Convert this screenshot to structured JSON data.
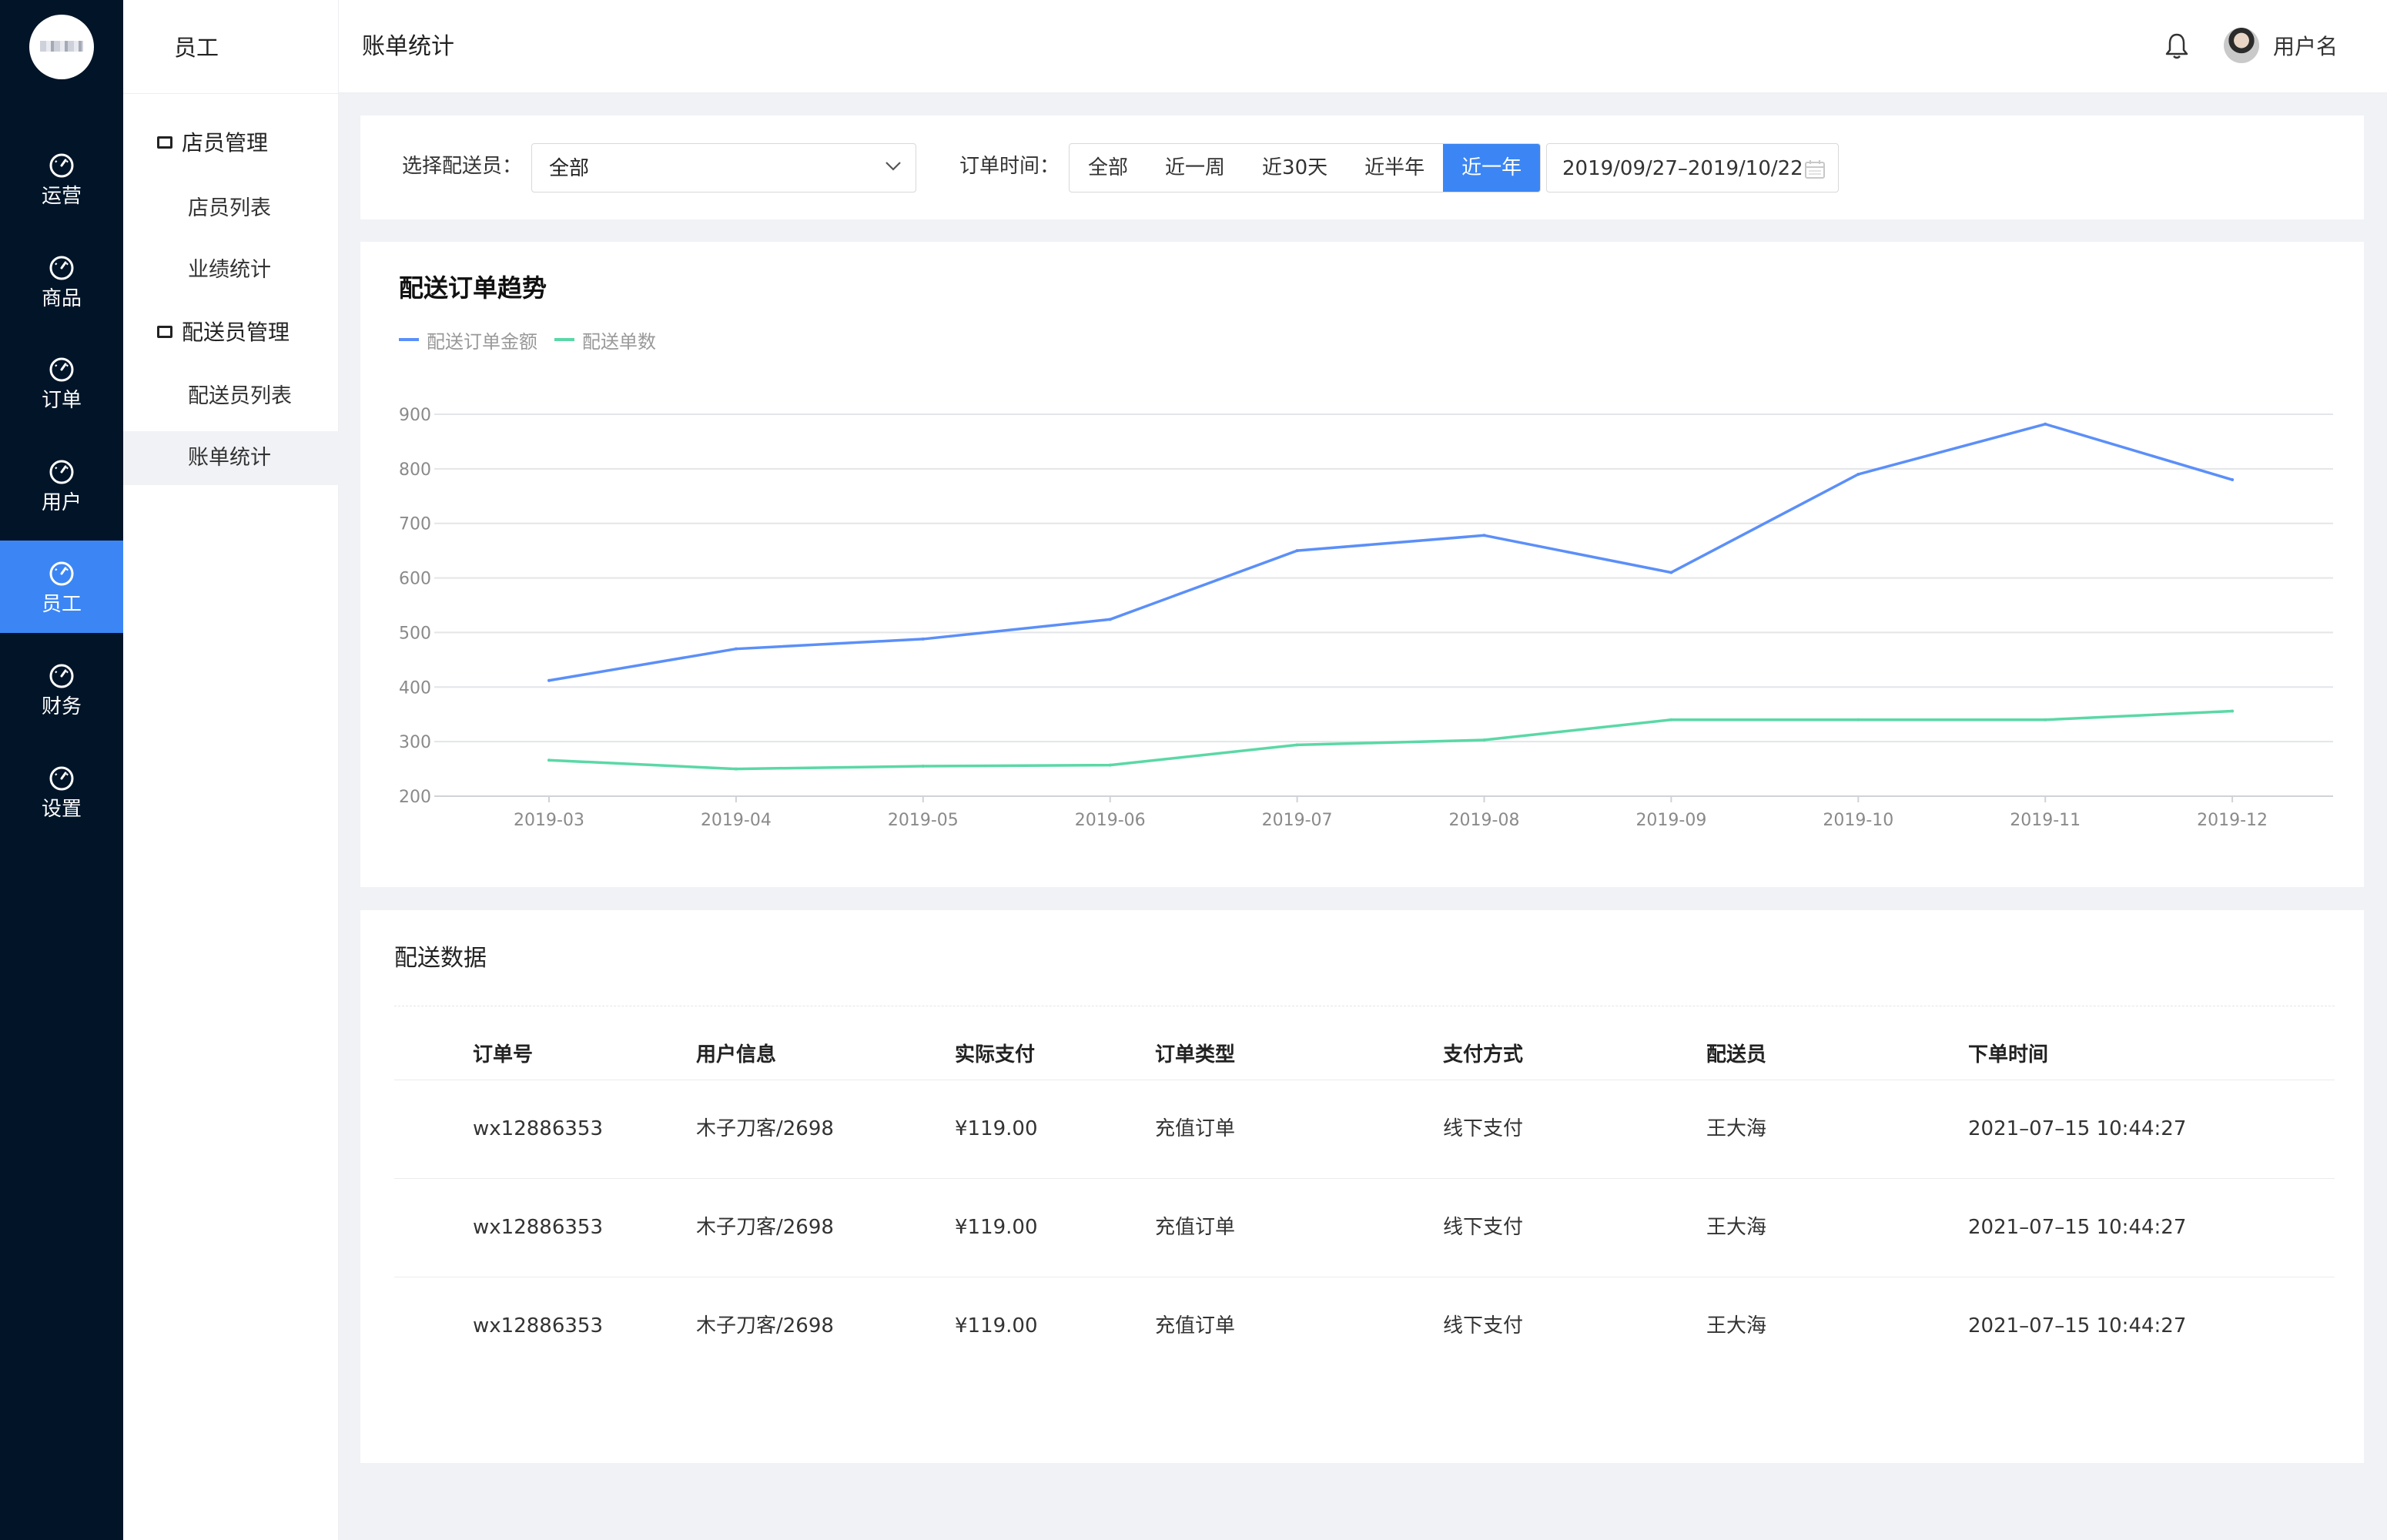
{
  "nav": {
    "items": [
      {
        "label": "运营",
        "icon": "dashboard-icon"
      },
      {
        "label": "商品",
        "icon": "dashboard-icon"
      },
      {
        "label": "订单",
        "icon": "dashboard-icon"
      },
      {
        "label": "用户",
        "icon": "dashboard-icon"
      },
      {
        "label": "员工",
        "icon": "dashboard-icon"
      },
      {
        "label": "财务",
        "icon": "dashboard-icon"
      },
      {
        "label": "设置",
        "icon": "dashboard-icon"
      }
    ],
    "active": "员工"
  },
  "sub": {
    "title": "员工",
    "groups": [
      {
        "label": "店员管理",
        "items": [
          "店员列表",
          "业绩统计"
        ]
      },
      {
        "label": "配送员管理",
        "items": [
          "配送员列表",
          "账单统计"
        ]
      }
    ],
    "active": "账单统计"
  },
  "header": {
    "breadcrumb": "账单统计",
    "username": "用户名"
  },
  "filter": {
    "courier_label": "选择配送员：",
    "courier_value": "全部",
    "time_label": "订单时间：",
    "time_options": [
      "全部",
      "近一周",
      "近30天",
      "近半年",
      "近一年"
    ],
    "time_active": "近一年",
    "date_range": "2019/09/27–2019/10/22"
  },
  "chart_data": {
    "type": "line",
    "title": "配送订单趋势",
    "categories": [
      "2019-03",
      "2019-04",
      "2019-05",
      "2019-06",
      "2019-07",
      "2019-08",
      "2019-09",
      "2019-10",
      "2019-11",
      "2019-12"
    ],
    "series": [
      {
        "name": "配送订单金额",
        "color": "#5b8ff9",
        "values": [
          412,
          470,
          488,
          524,
          650,
          678,
          610,
          790,
          882,
          780
        ]
      },
      {
        "name": "配送单数",
        "color": "#5ad8a6",
        "values": [
          266,
          250,
          255,
          257,
          294,
          303,
          340,
          340,
          340,
          356
        ]
      }
    ],
    "ylim": [
      200,
      900
    ],
    "yticks": [
      200,
      300,
      400,
      500,
      600,
      700,
      800,
      900
    ],
    "grid": true,
    "legend": "top-left"
  },
  "table": {
    "title": "配送数据",
    "columns": [
      "订单号",
      "用户信息",
      "实际支付",
      "订单类型",
      "支付方式",
      "配送员",
      "下单时间"
    ],
    "rows": [
      [
        "wx12886353",
        "木子刀客/2698",
        "¥119.00",
        "充值订单",
        "线下支付",
        "王大海",
        "2021–07–15 10:44:27"
      ],
      [
        "wx12886353",
        "木子刀客/2698",
        "¥119.00",
        "充值订单",
        "线下支付",
        "王大海",
        "2021–07–15 10:44:27"
      ],
      [
        "wx12886353",
        "木子刀客/2698",
        "¥119.00",
        "充值订单",
        "线下支付",
        "王大海",
        "2021–07–15 10:44:27"
      ]
    ]
  },
  "colors": {
    "nav_bg": "#011428",
    "accent": "#3b86f4",
    "page_bg": "#f0f2f5"
  }
}
